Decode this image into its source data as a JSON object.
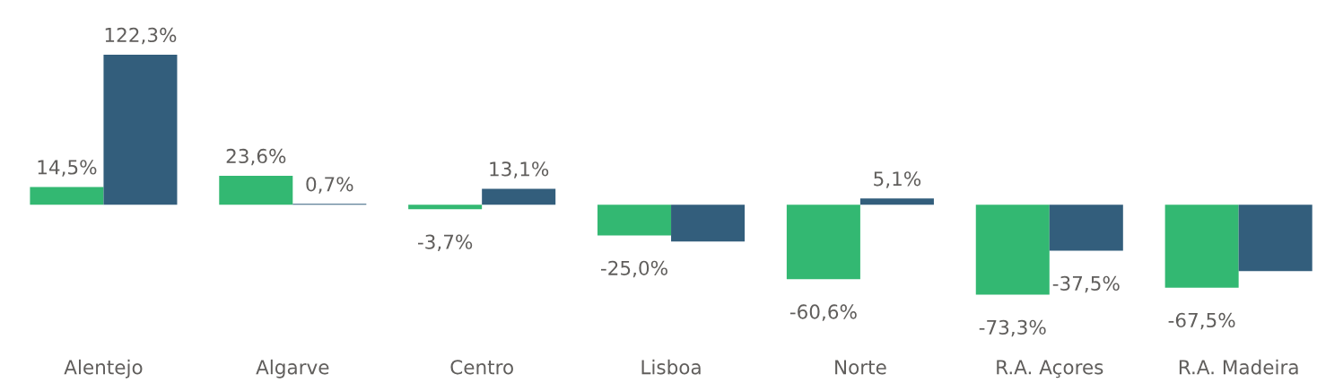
{
  "chart_data": {
    "type": "bar",
    "categories": [
      "Alentejo",
      "Algarve",
      "Centro",
      "Lisboa",
      "Norte",
      "R.A. Açores",
      "R.A. Madeira"
    ],
    "series": [
      {
        "color": "#33b872",
        "values": [
          14.5,
          23.6,
          -3.7,
          -25.0,
          -60.6,
          -73.3,
          -67.5
        ],
        "value_labels": [
          "14,5%",
          "23,6%",
          "-3,7%",
          "-25,0%",
          "-60,6%",
          "-73,3%",
          "-67,5%"
        ]
      },
      {
        "color": "#335e7c",
        "values": [
          122.3,
          0.7,
          13.1,
          -30,
          5.1,
          -37.5,
          -54
        ],
        "value_labels": [
          "122,3%",
          "0,7%",
          "13,1%",
          null,
          "5,1%",
          "-37,5%",
          null
        ]
      }
    ]
  }
}
